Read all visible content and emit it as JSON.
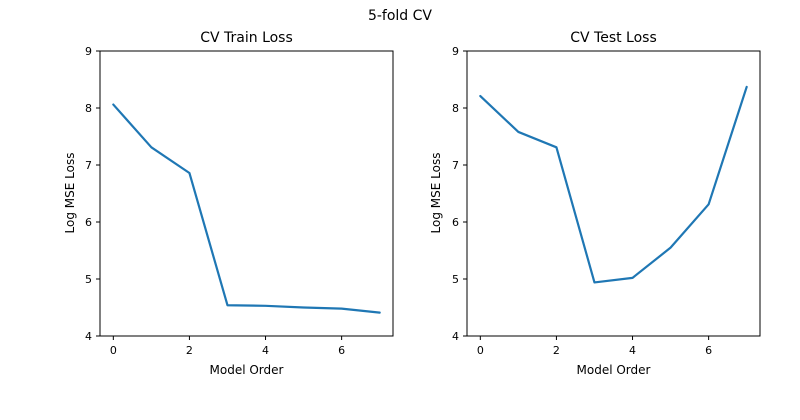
{
  "figure": {
    "suptitle": "5-fold CV"
  },
  "chart_data": [
    {
      "type": "line",
      "title": "CV Train Loss",
      "xlabel": "Model Order",
      "ylabel": "Log MSE Loss",
      "xlim": [
        -0.35,
        7.35
      ],
      "ylim": [
        4,
        9
      ],
      "xticks": [
        0,
        2,
        4,
        6
      ],
      "yticks": [
        4,
        5,
        6,
        7,
        8,
        9
      ],
      "grid": false,
      "color": "#1f77b4",
      "series": [
        {
          "x": [
            0,
            1,
            2,
            3,
            4,
            5,
            6,
            7
          ],
          "values": [
            8.06,
            7.31,
            6.86,
            4.54,
            4.53,
            4.5,
            4.48,
            4.41
          ]
        }
      ]
    },
    {
      "type": "line",
      "title": "CV Test Loss",
      "xlabel": "Model Order",
      "ylabel": "Log MSE Loss",
      "xlim": [
        -0.35,
        7.35
      ],
      "ylim": [
        4,
        9
      ],
      "xticks": [
        0,
        2,
        4,
        6
      ],
      "yticks": [
        4,
        5,
        6,
        7,
        8,
        9
      ],
      "grid": false,
      "color": "#1f77b4",
      "series": [
        {
          "x": [
            0,
            1,
            2,
            3,
            4,
            5,
            6,
            7
          ],
          "values": [
            8.21,
            7.58,
            7.31,
            4.94,
            5.02,
            5.55,
            6.31,
            8.37
          ]
        }
      ]
    }
  ]
}
